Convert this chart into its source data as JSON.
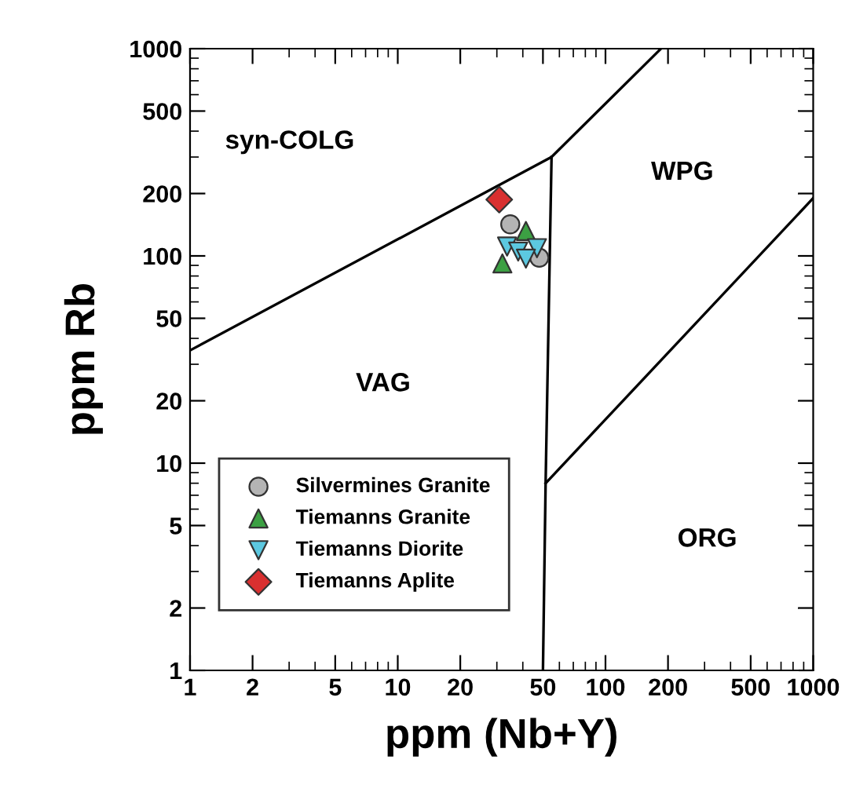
{
  "chart_data": {
    "type": "scatter",
    "xlabel": "ppm (Nb+Y)",
    "ylabel": "ppm Rb",
    "log": "xy",
    "xlim": [
      1,
      1000
    ],
    "ylim": [
      1,
      1000
    ],
    "xticks": [
      1,
      2,
      5,
      10,
      20,
      50,
      100,
      200,
      500,
      1000
    ],
    "yticks": [
      1,
      2,
      5,
      10,
      20,
      50,
      100,
      200,
      500,
      1000
    ],
    "grid": false,
    "legend": "bottom left",
    "annotations": [
      "syn-COLG",
      "VAG",
      "WPG",
      "ORG"
    ],
    "series": [
      {
        "type": "line",
        "color": "#000000",
        "x": [
          1,
          55,
          185
        ],
        "values": [
          35,
          300,
          1000
        ]
      },
      {
        "type": "line",
        "color": "#000000",
        "x": [
          55,
          51.5,
          50
        ],
        "values": [
          300,
          8,
          1
        ]
      },
      {
        "type": "line",
        "color": "#000000",
        "x": [
          51.5,
          1000
        ],
        "values": [
          8,
          190
        ]
      },
      {
        "name": "Silvermines Granite",
        "marker": "circle",
        "color": "#b4b4b4",
        "x": [
          34.8,
          48
        ],
        "values": [
          142,
          98
        ]
      },
      {
        "name": "Tiemanns Granite",
        "marker": "triangle",
        "color": "#3ca043",
        "x": [
          31.9,
          41.4
        ],
        "values": [
          92,
          132
        ]
      },
      {
        "name": "Tiemanns Diorite",
        "marker": "triangle_down",
        "color": "#5cc8e0",
        "x": [
          33.6,
          38,
          46.8,
          41.4
        ],
        "values": [
          111,
          105,
          109,
          97
        ]
      },
      {
        "name": "Tiemanns Aplite",
        "marker": "diamond",
        "color": "#d93030",
        "x": [
          30.8
        ],
        "values": [
          187
        ]
      }
    ]
  }
}
